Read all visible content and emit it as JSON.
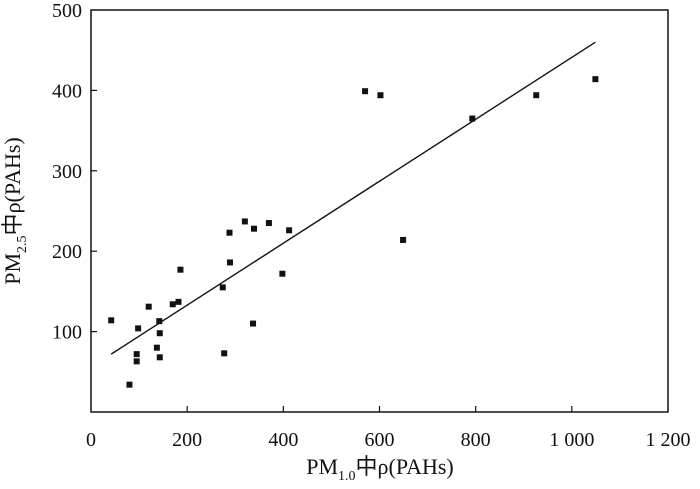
{
  "chart_data": {
    "type": "scatter",
    "title": "",
    "xlabel": {
      "prefix": "PM",
      "subscript": "1.0",
      "suffix": "中ρ(PAHs)"
    },
    "ylabel": {
      "prefix": "PM",
      "subscript": "2.5",
      "suffix": "中ρ(PAHs)"
    },
    "xlim": [
      0,
      1200
    ],
    "ylim": [
      0,
      500
    ],
    "xticks": [
      0,
      200,
      400,
      600,
      800,
      1000,
      1200
    ],
    "xtick_labels": [
      "0",
      "200",
      "400",
      "600",
      "800",
      "1 000",
      "1 200"
    ],
    "yticks": [
      100,
      200,
      300,
      400,
      500
    ],
    "ytick_labels": [
      "100",
      "200",
      "300",
      "400",
      "500"
    ],
    "grid": false,
    "legend": "none",
    "series": [
      {
        "marker": "square",
        "color": "#111111",
        "points": [
          [
            42,
            114
          ],
          [
            80,
            34
          ],
          [
            95,
            72
          ],
          [
            95,
            63
          ],
          [
            98,
            104
          ],
          [
            120,
            131
          ],
          [
            137,
            80
          ],
          [
            142,
            113
          ],
          [
            143,
            98
          ],
          [
            143,
            68
          ],
          [
            170,
            134
          ],
          [
            182,
            137
          ],
          [
            186,
            177
          ],
          [
            274,
            155
          ],
          [
            277,
            73
          ],
          [
            288,
            223
          ],
          [
            289,
            186
          ],
          [
            320,
            237
          ],
          [
            337,
            110
          ],
          [
            339,
            228
          ],
          [
            370,
            235
          ],
          [
            398,
            172
          ],
          [
            412,
            226
          ],
          [
            570,
            399
          ],
          [
            602,
            394
          ],
          [
            649,
            214
          ],
          [
            793,
            365
          ],
          [
            926,
            394
          ],
          [
            1049,
            414
          ]
        ]
      }
    ],
    "trendline": {
      "type": "linear",
      "color": "#111111",
      "x": [
        42,
        1049
      ],
      "y": [
        72,
        460
      ]
    }
  }
}
